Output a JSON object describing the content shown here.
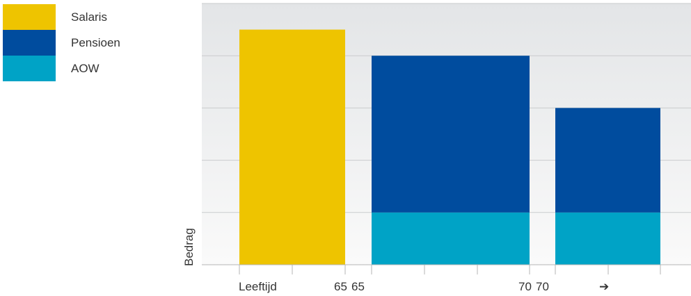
{
  "chart_data": {
    "type": "bar",
    "stacked": true,
    "ylabel": "Bedrag",
    "xlabel": "",
    "ylim": [
      0,
      5
    ],
    "grid": true,
    "legend_position": "top-left",
    "series": [
      {
        "name": "Salaris",
        "color": "#EEC400"
      },
      {
        "name": "Pensioen",
        "color": "#004C9E"
      },
      {
        "name": "AOW",
        "color": "#00A3C6"
      }
    ],
    "bars": [
      {
        "segments": [
          {
            "series": "Salaris",
            "from": 0,
            "to": 4.5
          }
        ]
      },
      {
        "segments": [
          {
            "series": "AOW",
            "from": 0,
            "to": 1
          },
          {
            "series": "Pensioen",
            "from": 1,
            "to": 4
          }
        ]
      },
      {
        "segments": [
          {
            "series": "AOW",
            "from": 0,
            "to": 1
          },
          {
            "series": "Pensioen",
            "from": 1,
            "to": 3
          }
        ]
      }
    ],
    "x_tick_labels": [
      "Leeftijd",
      "65",
      "65",
      "70",
      "70",
      "➔"
    ]
  }
}
